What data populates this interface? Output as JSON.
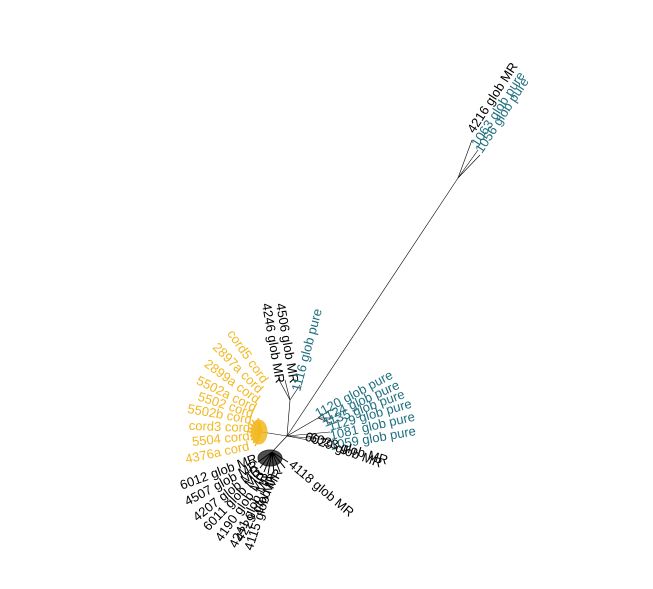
{
  "colors": {
    "mr": "#000000",
    "pure": "#1f6f7f",
    "cord": "#f2b820"
  },
  "tips": {
    "far_mr": "4216 glob MR",
    "far_pure_1": "1063 glob pure",
    "far_pure_2": "1056 glob pure",
    "top_mr_1": "4246 glob MR",
    "top_mr_2": "4506 glob MR",
    "top_pure": "1116 glob pure",
    "right_pure_1": "1120 glob pure",
    "right_pure_2": "1124 glob pure",
    "right_pure_3": "1135 glob pure",
    "right_pure_4": "1129 glob pure",
    "right_pure_5": "1081 glob pure",
    "right_pure_6": "1059 glob pure",
    "right_mr_1": "6023 glob MR",
    "right_mr_2": "6029 glob MR",
    "cord_1": "cord5 cord",
    "cord_2": "2897a cord",
    "cord_3": "2899a cord",
    "cord_4": "5502a cord",
    "cord_5": "5502 cord",
    "cord_6": "5502b cord",
    "cord_7": "cord3 cord",
    "cord_8": "5504 cord",
    "cord_9": "4376a cord",
    "bottom_mr_1": "6012 glob MR",
    "bottom_mr_2": "4507 glob MR",
    "bottom_mr_3": "4207 glob MR",
    "bottom_mr_4": "6011 glob MR",
    "bottom_mr_5": "4190 glob MR",
    "bottom_mr_6": "4241 glob MR",
    "bottom_mr_7": "4115 glob MR",
    "bottom_mr_8": "4229 glob MR",
    "bottom_mr_9": "4118 glob MR"
  }
}
